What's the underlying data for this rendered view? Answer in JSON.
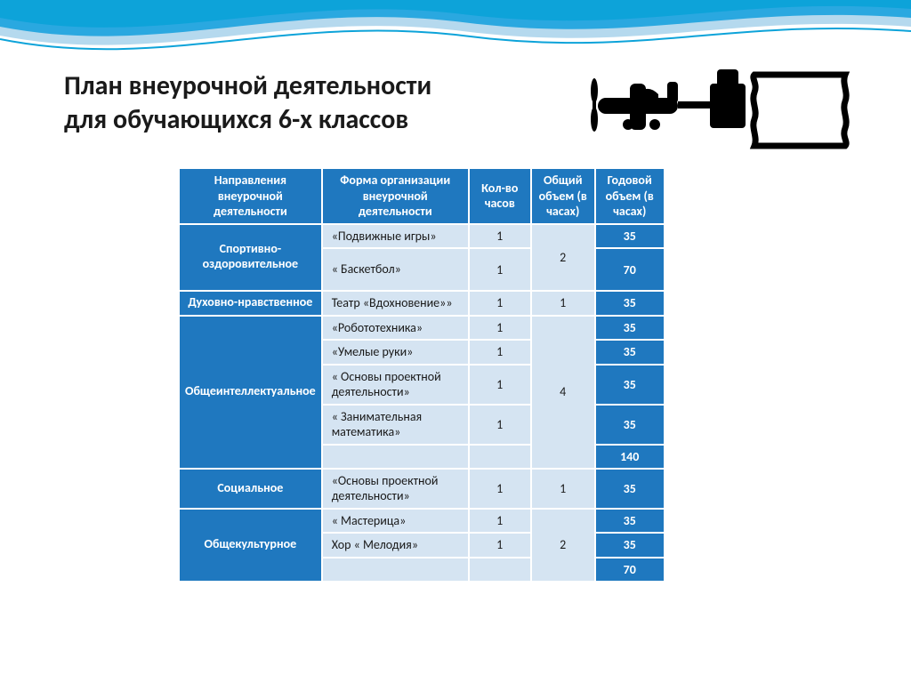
{
  "title": {
    "line1": "План внеурочной деятельности",
    "line2": "для обучающихся  6-х классов"
  },
  "colors": {
    "header_bg": "#1f78bf",
    "header_fg": "#ffffff",
    "cell_bg": "#d5e4f2",
    "cell_fg": "#1a1a1a",
    "wave1": "#0da3d9",
    "wave2": "#2aa8e0",
    "wave3": "#b5d9ee"
  },
  "headers": {
    "direction": "Направления внеурочной деятельности",
    "form": "Форма организации внеурочной деятельности",
    "hours": "Кол-во часов",
    "total": "Общий объем (в часах)",
    "year": "Годовой объем (в часах)"
  },
  "rows": [
    {
      "direction": "Спортивно-оздоровительное",
      "dir_rowspan": 2,
      "form": "«Подвижные игры»",
      "hours": "1",
      "total": "2",
      "total_rowspan": 2,
      "year": "35"
    },
    {
      "form": "« Баскетбол»",
      "hours": "1",
      "year": "70",
      "tall": true
    },
    {
      "direction": "Духовно-нравственное",
      "dir_rowspan": 1,
      "form": "Театр «Вдохновение»»",
      "hours": "1",
      "total": "1",
      "total_rowspan": 1,
      "year": "35"
    },
    {
      "direction": "Общеинтеллектуальное",
      "dir_rowspan": 5,
      "form": "«Робототехника»",
      "hours": "1",
      "total": "4",
      "total_rowspan": 5,
      "year": "35"
    },
    {
      "form": "«Умелые руки»",
      "hours": "1",
      "year": "35"
    },
    {
      "form": "« Основы проектной деятельности»",
      "hours": "1",
      "year": "35"
    },
    {
      "form": "« Занимательная математика»",
      "hours": "1",
      "year": "35"
    },
    {
      "form": "",
      "hours": "",
      "year": "140"
    },
    {
      "direction": "Социальное",
      "dir_rowspan": 1,
      "form": "«Основы проектной деятельности»",
      "hours": "1",
      "total": "1",
      "total_rowspan": 1,
      "year": "35"
    },
    {
      "direction": "Общекультурное",
      "dir_rowspan": 3,
      "form": "« Мастерица»",
      "hours": "1",
      "total": "2",
      "total_rowspan": 3,
      "year": "35"
    },
    {
      "form": "Хор « Мелодия»",
      "hours": "1",
      "year": "35"
    },
    {
      "form": "",
      "hours": "",
      "year": "70"
    }
  ]
}
